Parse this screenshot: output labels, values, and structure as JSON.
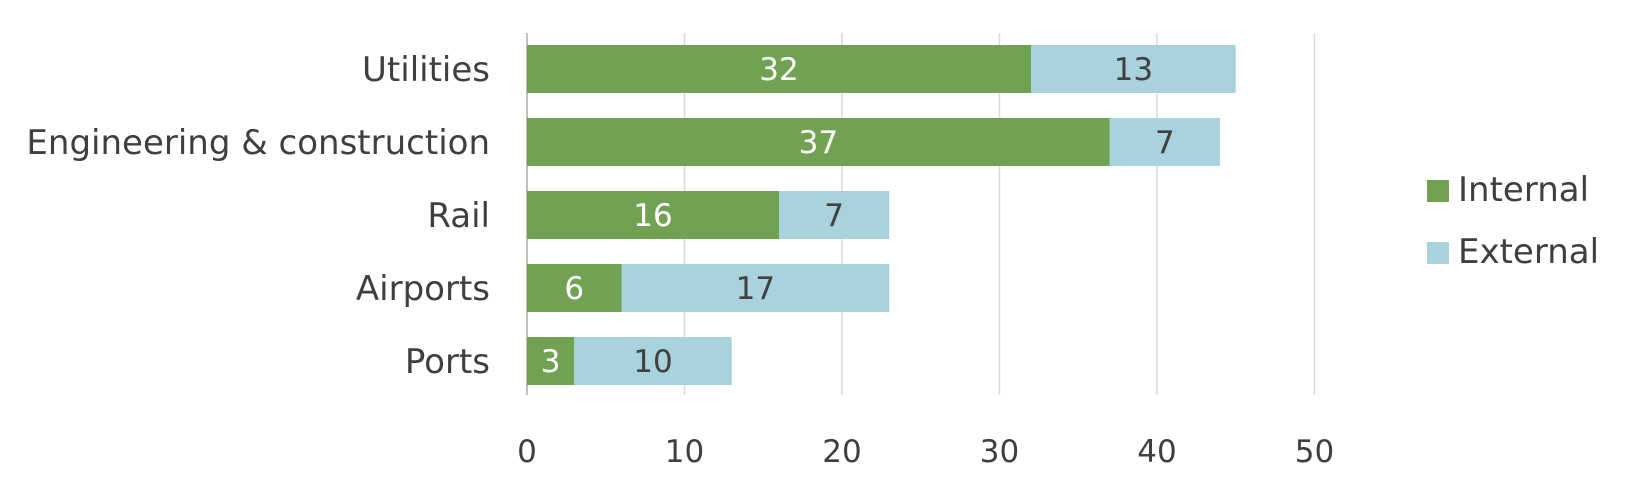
{
  "chart_data": {
    "type": "bar",
    "orientation": "horizontal",
    "stacked": true,
    "categories": [
      "Utilities",
      "Engineering & construction",
      "Rail",
      "Airports",
      "Ports"
    ],
    "series": [
      {
        "name": "Internal",
        "color": "#71a254",
        "label_color": "#ffffff",
        "values": [
          32,
          37,
          16,
          6,
          3
        ]
      },
      {
        "name": "External",
        "color": "#a8d3dc",
        "label_color": "#404040",
        "values": [
          13,
          7,
          7,
          17,
          10
        ]
      }
    ],
    "x_ticks": [
      "0",
      "10",
      "20",
      "30",
      "40",
      "50"
    ],
    "xlim": [
      0,
      50
    ],
    "grid": true,
    "legend_position": "right"
  }
}
